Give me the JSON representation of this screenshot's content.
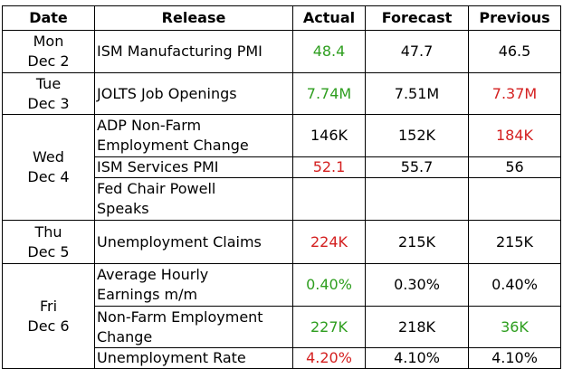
{
  "headers": {
    "date": "Date",
    "release": "Release",
    "actual": "Actual",
    "forecast": "Forecast",
    "previous": "Previous"
  },
  "days": [
    {
      "day": "Mon",
      "date": "Dec 2"
    },
    {
      "day": "Tue",
      "date": "Dec 3"
    },
    {
      "day": "Wed",
      "date": "Dec 4"
    },
    {
      "day": "Thu",
      "date": "Dec 5"
    },
    {
      "day": "Fri",
      "date": "Dec 6"
    }
  ],
  "rows": [
    {
      "release": [
        "ISM Manufacturing PMI"
      ],
      "actual": "48.4",
      "actual_color": "green",
      "forecast": "47.7",
      "previous": "46.5",
      "previous_color": "black"
    },
    {
      "release": [
        "JOLTS Job Openings"
      ],
      "actual": "7.74M",
      "actual_color": "green",
      "forecast": "7.51M",
      "previous": "7.37M",
      "previous_color": "red"
    },
    {
      "release": [
        "ADP Non-Farm",
        "Employment Change"
      ],
      "actual": "146K",
      "actual_color": "black",
      "forecast": "152K",
      "previous": "184K",
      "previous_color": "red"
    },
    {
      "release": [
        "ISM Services PMI"
      ],
      "actual": "52.1",
      "actual_color": "red",
      "forecast": "55.7",
      "previous": "56",
      "previous_color": "black"
    },
    {
      "release": [
        "Fed Chair Powell",
        "Speaks"
      ],
      "actual": "",
      "actual_color": "black",
      "forecast": "",
      "previous": "",
      "previous_color": "black"
    },
    {
      "release": [
        "Unemployment Claims"
      ],
      "actual": "224K",
      "actual_color": "red",
      "forecast": "215K",
      "previous": "215K",
      "previous_color": "black"
    },
    {
      "release": [
        "Average Hourly",
        "Earnings m/m"
      ],
      "actual": "0.40%",
      "actual_color": "green",
      "forecast": "0.30%",
      "previous": "0.40%",
      "previous_color": "black"
    },
    {
      "release": [
        "Non-Farm Employment",
        "Change"
      ],
      "actual": "227K",
      "actual_color": "green",
      "forecast": "218K",
      "previous": "36K",
      "previous_color": "green"
    },
    {
      "release": [
        "Unemployment Rate"
      ],
      "actual": "4.20%",
      "actual_color": "red",
      "forecast": "4.10%",
      "previous": "4.10%",
      "previous_color": "black"
    }
  ],
  "colors": {
    "green": "#2e9e1f",
    "red": "#d42020",
    "black": "#000000"
  }
}
